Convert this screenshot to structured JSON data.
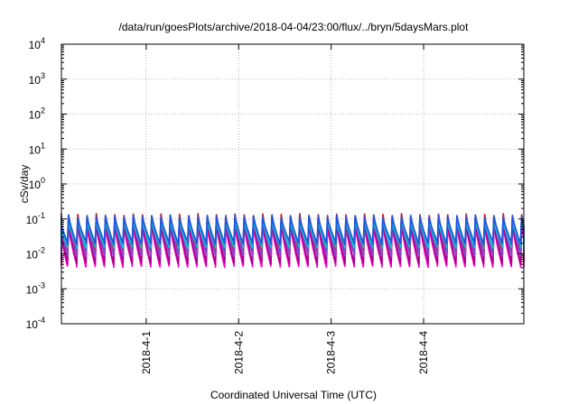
{
  "chart_data": {
    "type": "line",
    "title": "/data/run/goesPlots/archive/2018-04-04/23:00/flux/../bryn/5daysMars.plot",
    "xlabel": "Coordinated Universal Time (UTC)",
    "ylabel": "cSv/day",
    "y_scale": "log",
    "ylim": [
      0.0001,
      10000
    ],
    "xlim": [
      "2018-03-31T02:00",
      "2018-04-05T02:00"
    ],
    "x_ticks": [
      "2018-4-1",
      "2018-4-2",
      "2018-4-3",
      "2018-4-4"
    ],
    "y_ticks": [
      {
        "value": 0.0001,
        "base": "10",
        "exp": "-4"
      },
      {
        "value": 0.001,
        "base": "10",
        "exp": "-3"
      },
      {
        "value": 0.01,
        "base": "10",
        "exp": "-2"
      },
      {
        "value": 0.1,
        "base": "10",
        "exp": "-1"
      },
      {
        "value": 1,
        "base": "10",
        "exp": "0"
      },
      {
        "value": 10,
        "base": "10",
        "exp": "1"
      },
      {
        "value": 100,
        "base": "10",
        "exp": "2"
      },
      {
        "value": 1000,
        "base": "10",
        "exp": "3"
      },
      {
        "value": 10000,
        "base": "10",
        "exp": "4"
      }
    ],
    "grid": true,
    "pattern": "sawtooth",
    "period_hours": 2.4,
    "series": [
      {
        "color": "#ff00cc",
        "peak": 0.07,
        "trough": 0.0045
      },
      {
        "color": "#aa0088",
        "peak": 0.085,
        "trough": 0.0055
      },
      {
        "color": "#cc2222",
        "peak": 0.13,
        "trough": 0.011
      },
      {
        "color": "#8844cc",
        "peak": 0.11,
        "trough": 0.009
      },
      {
        "color": "#00cccc",
        "peak": 0.095,
        "trough": 0.016
      },
      {
        "color": "#2255dd",
        "peak": 0.12,
        "trough": 0.02
      }
    ]
  }
}
